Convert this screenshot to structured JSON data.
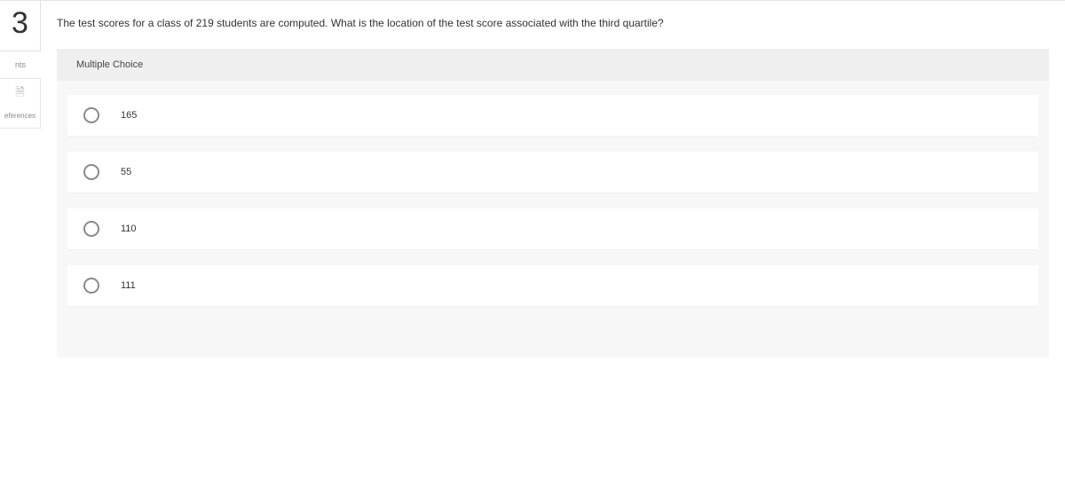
{
  "sidebar": {
    "question_number": "3",
    "hints_label": "nts",
    "references_label": "eferences"
  },
  "question": {
    "text": "The test scores for a class of 219 students are computed. What is the location of the test score associated with the third quartile?"
  },
  "answer": {
    "header": "Multiple Choice",
    "options": [
      {
        "label": "165"
      },
      {
        "label": "55"
      },
      {
        "label": "110"
      },
      {
        "label": "111"
      }
    ]
  }
}
